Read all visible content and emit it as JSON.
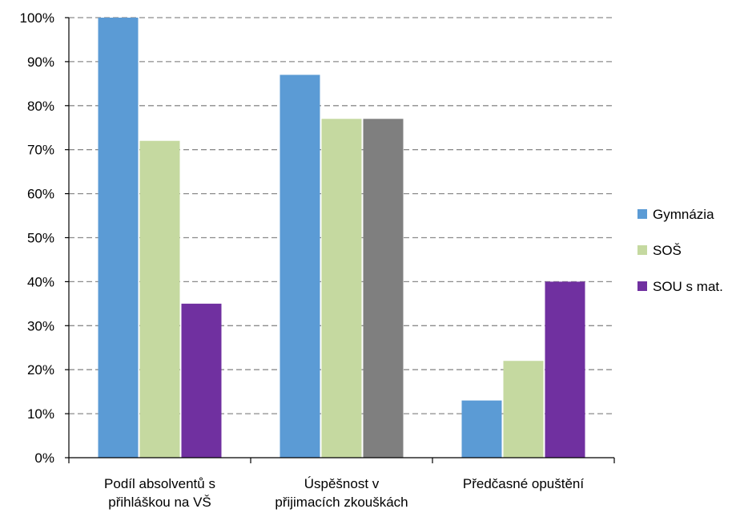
{
  "chart_data": {
    "type": "bar",
    "categories": [
      [
        "Podíl absolventů s",
        "přihláškou na VŠ"
      ],
      [
        "Úspěšnost v",
        "přijimacích zkouškách"
      ],
      [
        "Předčasné opuštění"
      ]
    ],
    "series": [
      {
        "name": "Gymnázia",
        "color": "#5B9BD5",
        "values": [
          100,
          87,
          13
        ]
      },
      {
        "name": "SOŠ",
        "color": "#C5D9A0",
        "values": [
          72,
          77,
          22
        ]
      },
      {
        "name": "SOU s mat.",
        "color": "#7030A0",
        "values": [
          35,
          77,
          40
        ]
      }
    ],
    "bar_color_overrides": [
      {
        "series": 2,
        "category": 1,
        "color": "#7F7F7F"
      }
    ],
    "ylim": [
      0,
      100
    ],
    "yticks": [
      0,
      10,
      20,
      30,
      40,
      50,
      60,
      70,
      80,
      90,
      100
    ],
    "ytick_labels": [
      "0%",
      "10%",
      "20%",
      "30%",
      "40%",
      "50%",
      "60%",
      "70%",
      "80%",
      "90%",
      "100%"
    ],
    "grid": true,
    "grid_style": "dashed",
    "legend_position": "right",
    "title": "",
    "xlabel": "",
    "ylabel": ""
  }
}
